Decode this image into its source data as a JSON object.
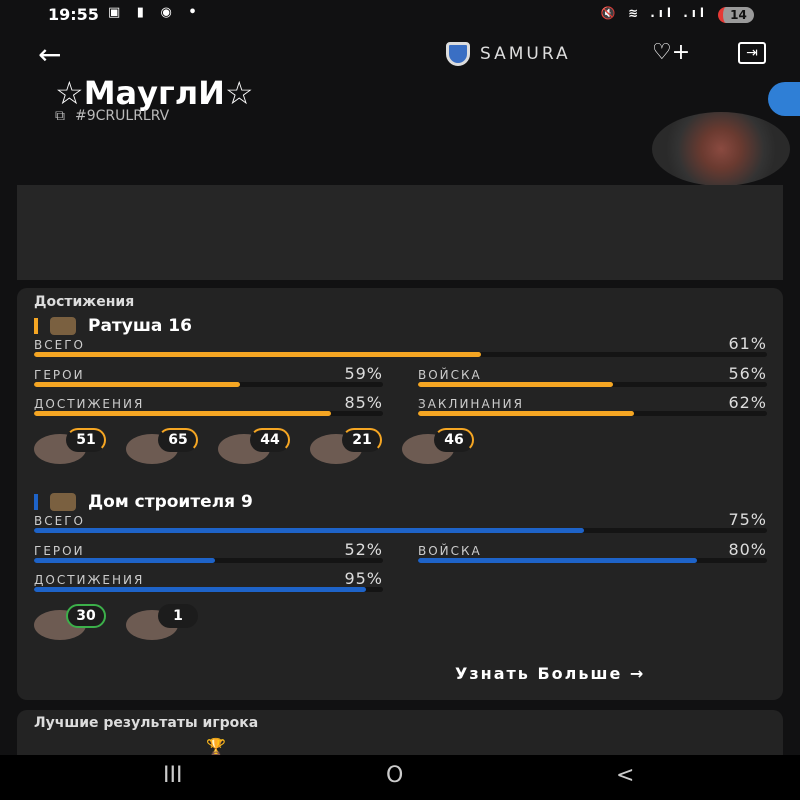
{
  "status": {
    "time": "19:55",
    "battery": "14",
    "left_icons": "▣ ▮ ◉ •",
    "right_icons": "🔇 ≋ .ıl .ıl"
  },
  "header": {
    "back": "←",
    "clan": "SAMURA",
    "heart": "♡+",
    "exit": "⇥"
  },
  "profile": {
    "name": "☆МауглИ☆",
    "tag": "#9CRULRLRV",
    "copy": "⧉"
  },
  "achievements": {
    "title": "Достижения",
    "home": {
      "title": "Ратуша 16",
      "color": "#f5a623",
      "total": {
        "label": "ВСЕГО",
        "value": "61%",
        "fraction": 0.61
      },
      "stats": [
        {
          "label": "ГЕРОИ",
          "value": "59%",
          "fraction": 0.59
        },
        {
          "label": "ВОЙСКА",
          "value": "56%",
          "fraction": 0.56
        },
        {
          "label": "ДОСТИЖЕНИЯ",
          "value": "85%",
          "fraction": 0.85
        },
        {
          "label": "ЗАКЛИНАНИЯ",
          "value": "62%",
          "fraction": 0.62
        }
      ],
      "heroes": [
        "51",
        "65",
        "44",
        "21",
        "46"
      ]
    },
    "builder": {
      "title": "Дом строителя 9",
      "color": "#1e63c8",
      "total": {
        "label": "ВСЕГО",
        "value": "75%",
        "fraction": 0.75
      },
      "stats": [
        {
          "label": "ГЕРОИ",
          "value": "52%",
          "fraction": 0.52
        },
        {
          "label": "ВОЙСКА",
          "value": "80%",
          "fraction": 0.8
        },
        {
          "label": "ДОСТИЖЕНИЯ",
          "value": "95%",
          "fraction": 0.95
        }
      ],
      "heroes": [
        "30",
        "1"
      ]
    },
    "more": "Узнать Больше →"
  },
  "best": {
    "title": "Лучшие результаты игрока"
  },
  "nav": {
    "recent": "III",
    "home": "O",
    "back": "<"
  }
}
